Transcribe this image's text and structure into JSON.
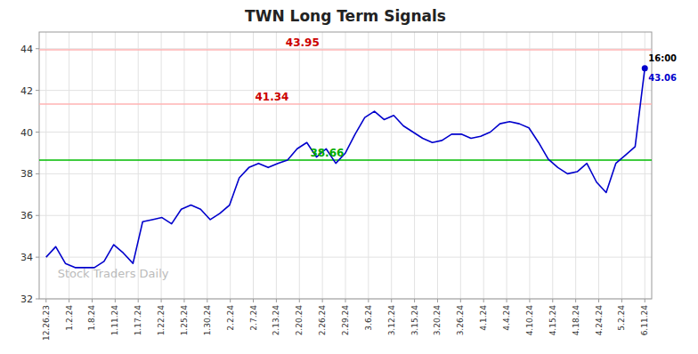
{
  "chart_data": {
    "type": "line",
    "title": "TWN Long Term Signals",
    "watermark": "Stock Traders Daily",
    "x": [
      0,
      0.419355,
      0.83871,
      1.258065,
      1.677419,
      2.096774,
      2.516129,
      2.935484,
      3.354839,
      3.774194,
      4.193548,
      4.612903,
      5.032258,
      5.451613,
      5.870968,
      6.290323,
      6.709677,
      7.129032,
      7.548387,
      7.967742,
      8.387097,
      8.806452,
      9.225806,
      9.645161,
      10.064516,
      10.483871,
      10.903226,
      11.322581,
      11.741935,
      12.16129,
      12.580645,
      13,
      13.419355,
      13.83871,
      14.258065,
      14.677419,
      15.096774,
      15.516129,
      15.935484,
      16.354839,
      16.774194,
      17.193548,
      17.612903,
      18.032258,
      18.451613,
      18.870968,
      19.290323,
      19.709677,
      20.129032,
      20.548387,
      20.967742,
      21.387097,
      21.806452,
      22.225806,
      22.645161,
      23.064516,
      23.483871,
      23.903226,
      24.322581,
      24.741935,
      25.16129,
      25.580645,
      26
    ],
    "values": [
      34.0,
      34.5,
      33.7,
      33.5,
      33.5,
      33.5,
      33.8,
      34.6,
      34.2,
      33.7,
      35.7,
      35.8,
      35.9,
      35.6,
      36.3,
      36.5,
      36.3,
      35.8,
      36.1,
      36.5,
      37.8,
      38.3,
      38.5,
      38.3,
      38.5,
      38.66,
      39.2,
      39.5,
      38.8,
      39.2,
      38.5,
      39.0,
      39.9,
      40.7,
      41.0,
      40.6,
      40.8,
      40.3,
      40.0,
      39.7,
      39.5,
      39.6,
      39.9,
      39.9,
      39.7,
      39.8,
      40.0,
      40.4,
      40.5,
      40.4,
      40.2,
      39.5,
      38.7,
      38.3,
      38.0,
      38.1,
      38.5,
      37.6,
      37.1,
      38.5,
      38.9,
      39.3,
      43.06
    ],
    "color": "#0000cc",
    "xlim": [
      -0.3,
      26.3
    ],
    "xticks": [
      {
        "value": 0,
        "label": "12.26.23"
      },
      {
        "value": 1,
        "label": "1.2.24"
      },
      {
        "value": 2,
        "label": "1.8.24"
      },
      {
        "value": 3,
        "label": "1.11.24"
      },
      {
        "value": 4,
        "label": "1.17.24"
      },
      {
        "value": 5,
        "label": "1.22.24"
      },
      {
        "value": 6,
        "label": "1.25.24"
      },
      {
        "value": 7,
        "label": "1.30.24"
      },
      {
        "value": 8,
        "label": "2.2.24"
      },
      {
        "value": 9,
        "label": "2.7.24"
      },
      {
        "value": 10,
        "label": "2.13.24"
      },
      {
        "value": 11,
        "label": "2.20.24"
      },
      {
        "value": 12,
        "label": "2.26.24"
      },
      {
        "value": 13,
        "label": "2.29.24"
      },
      {
        "value": 14,
        "label": "3.6.24"
      },
      {
        "value": 15,
        "label": "3.12.24"
      },
      {
        "value": 16,
        "label": "3.15.24"
      },
      {
        "value": 17,
        "label": "3.20.24"
      },
      {
        "value": 18,
        "label": "3.26.24"
      },
      {
        "value": 19,
        "label": "4.1.24"
      },
      {
        "value": 20,
        "label": "4.4.24"
      },
      {
        "value": 21,
        "label": "4.10.24"
      },
      {
        "value": 22,
        "label": "4.15.24"
      },
      {
        "value": 23,
        "label": "4.18.24"
      },
      {
        "value": 24,
        "label": "4.24.24"
      },
      {
        "value": 25,
        "label": "5.2.24"
      },
      {
        "value": 26,
        "label": "6.11.24"
      }
    ],
    "ylim": [
      32,
      44.8
    ],
    "yticks": [
      32,
      34,
      36,
      38,
      40,
      42,
      44
    ],
    "grid": true,
    "annotations": [
      {
        "text": "43.95",
        "y": 43.95,
        "color": "#cc0000",
        "line_color": "#ffb3b3"
      },
      {
        "text": "41.34",
        "y": 41.34,
        "color": "#cc0000",
        "line_color": "#ffb3b3"
      },
      {
        "text": "38.66",
        "y": 38.66,
        "color": "#00aa00",
        "line_color": "#00bb00"
      }
    ],
    "last_point": {
      "x": 26,
      "y": 43.06,
      "label": "43.06",
      "time": "16:00",
      "color": "#0000cc"
    }
  }
}
